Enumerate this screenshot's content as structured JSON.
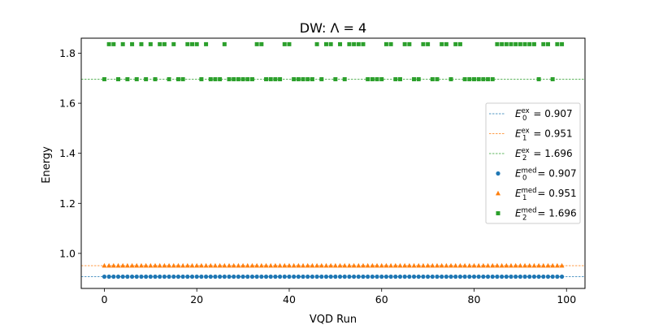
{
  "chart_data": {
    "type": "scatter",
    "title": "DW: Λ = 4",
    "xlabel": "VQD Run",
    "ylabel": "Energy",
    "xlim": [
      -5,
      104
    ],
    "ylim": [
      0.86,
      1.86
    ],
    "xticks": [
      0,
      20,
      40,
      60,
      80,
      100
    ],
    "xtick_labels": [
      "0",
      "20",
      "40",
      "60",
      "80",
      "100"
    ],
    "yticks": [
      1.0,
      1.2,
      1.4,
      1.6,
      1.8
    ],
    "ytick_labels": [
      "1.0",
      "1.2",
      "1.4",
      "1.6",
      "1.8"
    ],
    "grid": false,
    "legend_position": "center-right",
    "reference_lines": [
      {
        "label": "E₀ᵉˣ = 0.907",
        "sub": "0",
        "sup": "ex",
        "value_text": "0.907",
        "y": 0.907,
        "color": "#1f77b4",
        "style": "dashed"
      },
      {
        "label": "E₁ᵉˣ = 0.951",
        "sub": "1",
        "sup": "ex",
        "value_text": "0.951",
        "y": 0.951,
        "color": "#ff7f0e",
        "style": "dashed"
      },
      {
        "label": "E₂ᵉˣ = 1.696",
        "sub": "2",
        "sup": "ex",
        "value_text": "1.696",
        "y": 1.696,
        "color": "#2ca02c",
        "style": "dashed"
      }
    ],
    "series": [
      {
        "label": "E₀ᵐᵉᵈ = 0.907",
        "sub": "0",
        "sup": "med",
        "value_text": "0.907",
        "color": "#1f77b4",
        "marker": "circle",
        "x_range": [
          0,
          99
        ],
        "y_constant": 0.907
      },
      {
        "label": "E₁ᵐᵉᵈ = 0.951",
        "sub": "1",
        "sup": "med",
        "value_text": "0.951",
        "color": "#ff7f0e",
        "marker": "triangle",
        "x_range": [
          0,
          99
        ],
        "y_constant": 0.951
      },
      {
        "label": "E₂ᵐᵉᵈ = 1.696",
        "sub": "2",
        "sup": "med",
        "value_text": "1.696",
        "color": "#2ca02c",
        "marker": "square",
        "points": [
          [
            0,
            1.696
          ],
          [
            1,
            1.836
          ],
          [
            2,
            1.836
          ],
          [
            3,
            1.696
          ],
          [
            4,
            1.836
          ],
          [
            5,
            1.696
          ],
          [
            6,
            1.836
          ],
          [
            7,
            1.696
          ],
          [
            8,
            1.836
          ],
          [
            9,
            1.696
          ],
          [
            10,
            1.836
          ],
          [
            11,
            1.696
          ],
          [
            12,
            1.836
          ],
          [
            13,
            1.836
          ],
          [
            14,
            1.696
          ],
          [
            15,
            1.836
          ],
          [
            16,
            1.696
          ],
          [
            17,
            1.696
          ],
          [
            18,
            1.836
          ],
          [
            19,
            1.836
          ],
          [
            20,
            1.836
          ],
          [
            21,
            1.696
          ],
          [
            22,
            1.836
          ],
          [
            23,
            1.696
          ],
          [
            24,
            1.696
          ],
          [
            25,
            1.696
          ],
          [
            26,
            1.836
          ],
          [
            27,
            1.696
          ],
          [
            28,
            1.696
          ],
          [
            29,
            1.696
          ],
          [
            30,
            1.696
          ],
          [
            31,
            1.696
          ],
          [
            32,
            1.696
          ],
          [
            33,
            1.836
          ],
          [
            34,
            1.836
          ],
          [
            35,
            1.696
          ],
          [
            36,
            1.696
          ],
          [
            37,
            1.696
          ],
          [
            38,
            1.696
          ],
          [
            39,
            1.836
          ],
          [
            40,
            1.836
          ],
          [
            41,
            1.696
          ],
          [
            42,
            1.696
          ],
          [
            43,
            1.696
          ],
          [
            44,
            1.696
          ],
          [
            45,
            1.696
          ],
          [
            46,
            1.836
          ],
          [
            47,
            1.696
          ],
          [
            48,
            1.836
          ],
          [
            49,
            1.836
          ],
          [
            50,
            1.696
          ],
          [
            51,
            1.836
          ],
          [
            52,
            1.696
          ],
          [
            53,
            1.836
          ],
          [
            54,
            1.836
          ],
          [
            55,
            1.836
          ],
          [
            56,
            1.836
          ],
          [
            57,
            1.696
          ],
          [
            58,
            1.696
          ],
          [
            59,
            1.696
          ],
          [
            60,
            1.696
          ],
          [
            61,
            1.836
          ],
          [
            62,
            1.836
          ],
          [
            63,
            1.696
          ],
          [
            64,
            1.696
          ],
          [
            65,
            1.836
          ],
          [
            66,
            1.836
          ],
          [
            67,
            1.696
          ],
          [
            68,
            1.696
          ],
          [
            69,
            1.836
          ],
          [
            70,
            1.836
          ],
          [
            71,
            1.696
          ],
          [
            72,
            1.696
          ],
          [
            73,
            1.836
          ],
          [
            74,
            1.836
          ],
          [
            75,
            1.696
          ],
          [
            76,
            1.836
          ],
          [
            77,
            1.836
          ],
          [
            78,
            1.696
          ],
          [
            79,
            1.696
          ],
          [
            80,
            1.696
          ],
          [
            81,
            1.696
          ],
          [
            82,
            1.696
          ],
          [
            83,
            1.696
          ],
          [
            84,
            1.696
          ],
          [
            85,
            1.836
          ],
          [
            86,
            1.836
          ],
          [
            87,
            1.836
          ],
          [
            88,
            1.836
          ],
          [
            89,
            1.836
          ],
          [
            90,
            1.836
          ],
          [
            91,
            1.836
          ],
          [
            92,
            1.836
          ],
          [
            93,
            1.836
          ],
          [
            94,
            1.696
          ],
          [
            95,
            1.836
          ],
          [
            96,
            1.836
          ],
          [
            97,
            1.696
          ],
          [
            98,
            1.836
          ],
          [
            99,
            1.836
          ]
        ]
      }
    ]
  }
}
